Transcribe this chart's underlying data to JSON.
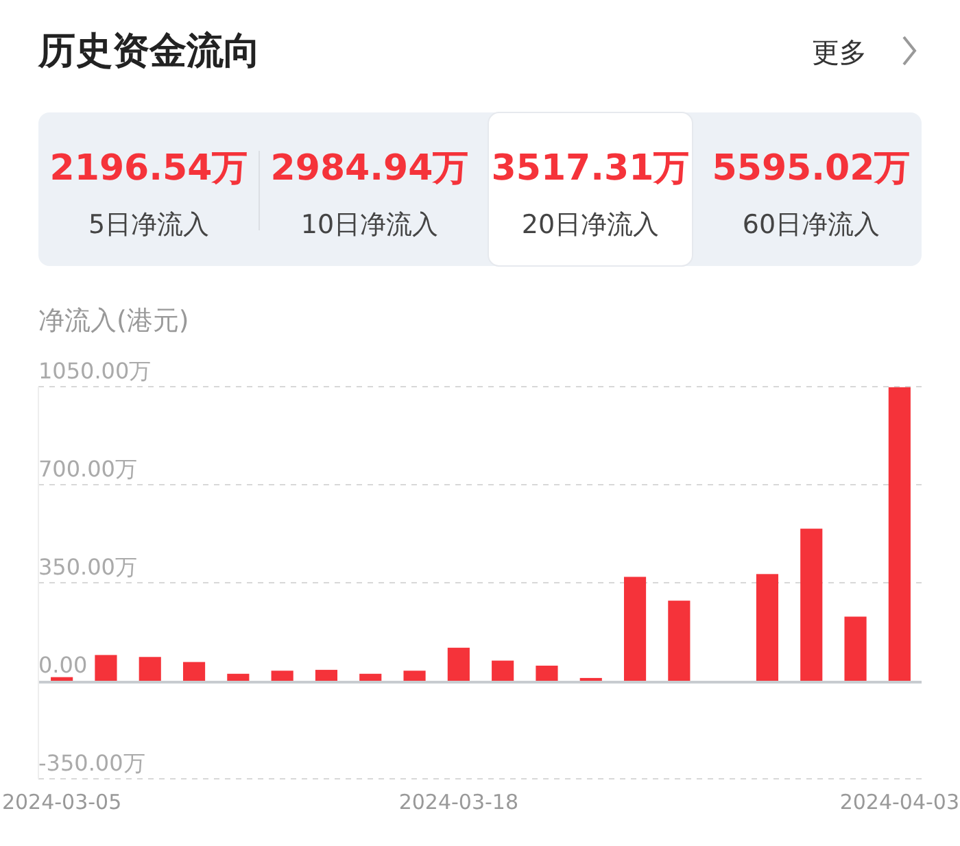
{
  "chart_data": {
    "type": "bar",
    "title": "历史资金流向",
    "ylabel": "净流入(港元)",
    "categories": [
      "2024-03-05",
      null,
      null,
      null,
      null,
      null,
      null,
      null,
      null,
      "2024-03-18",
      null,
      null,
      null,
      null,
      null,
      null,
      null,
      null,
      null,
      "2024-04-03"
    ],
    "values": [
      13,
      92,
      85,
      67,
      25,
      36,
      39,
      25,
      36,
      118,
      72,
      54,
      10,
      371,
      286,
      0,
      381,
      543,
      229,
      1048
    ],
    "color": "#f5333a",
    "ylim": [
      -350,
      1050
    ],
    "yticks": [
      {
        "value": -350,
        "label": "-350.00万"
      },
      {
        "value": 0,
        "label": "0.00"
      },
      {
        "value": 350,
        "label": "350.00万"
      },
      {
        "value": 700,
        "label": "700.00万"
      },
      {
        "value": 1050,
        "label": "1050.00万"
      }
    ],
    "grid": "y",
    "annotations": [
      "更多",
      "2196.54万",
      "5日净流入",
      "2984.94万",
      "10日净流入",
      "3517.31万",
      "20日净流入",
      "5595.02万",
      "60日净流入"
    ]
  }
}
